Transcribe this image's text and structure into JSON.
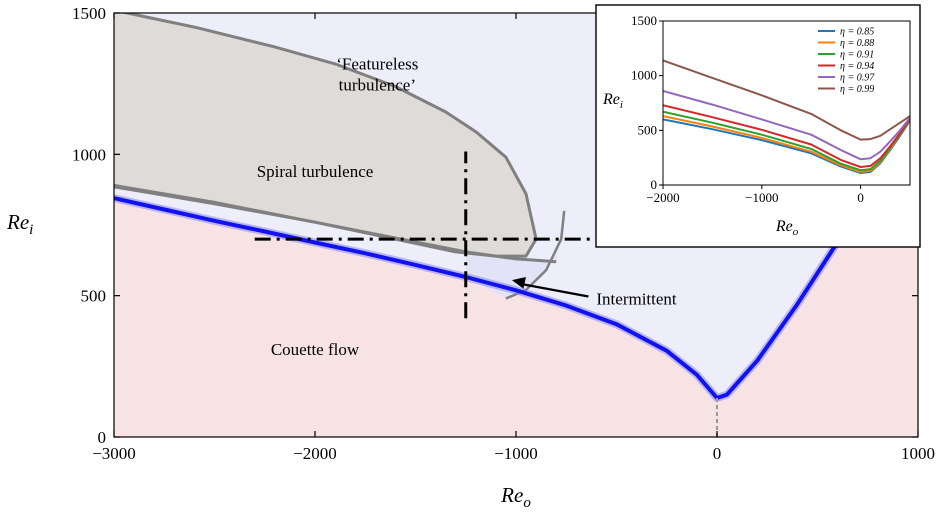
{
  "chart_data": [
    {
      "type": "line",
      "xlabel": "Re",
      "xlabel_sub": "o",
      "ylabel": "Re",
      "ylabel_sub": "i",
      "xlim": [
        -3000,
        1000
      ],
      "ylim": [
        0,
        1500
      ],
      "xticks": [
        -3000,
        -2000,
        -1000,
        0,
        1000
      ],
      "xtick_labels": [
        "−3000",
        "−2000",
        "−1000",
        "0",
        "1000"
      ],
      "yticks": [
        0,
        500,
        1000,
        1500
      ],
      "ytick_labels": [
        "0",
        "500",
        "1000",
        "1500"
      ],
      "regions": [
        {
          "label": "Couette flow",
          "color": "#f7e3e3",
          "label_at": [
            -2000,
            290
          ]
        },
        {
          "label": "Spiral turbulence",
          "color": "#eeeefb",
          "label_at": [
            -2000,
            920
          ]
        },
        {
          "label": "‘Featureless turbulence’",
          "label_lines": [
            "‘Featureless",
            "turbulence’"
          ],
          "color": "#dedbd9",
          "label_at": [
            -1690,
            1300
          ]
        },
        {
          "label": "Intermittent",
          "color": "#e3e3f8",
          "label_at": [
            -600,
            490
          ]
        }
      ],
      "stability_boundary": {
        "color": "#1212ee",
        "x": [
          -3000,
          -2750,
          -2500,
          -2250,
          -2000,
          -1750,
          -1500,
          -1250,
          -1000,
          -750,
          -500,
          -250,
          -100,
          0,
          50,
          200,
          400,
          600,
          800,
          1000
        ],
        "y": [
          845,
          805,
          765,
          727,
          688,
          650,
          609,
          566,
          519,
          465,
          399,
          305,
          220,
          138,
          150,
          270,
          470,
          690,
          920,
          1160
        ]
      },
      "spiral_lower_boundary": {
        "color": "#808080",
        "x": [
          -3000,
          -2500,
          -2000,
          -1500,
          -1250,
          -1100,
          -1000,
          -900,
          -800
        ],
        "y": [
          885,
          825,
          760,
          690,
          655,
          640,
          630,
          625,
          620
        ]
      },
      "featureless_boundary": {
        "color": "#808080",
        "x": [
          -3000,
          -2600,
          -2200,
          -1900,
          -1600,
          -1350,
          -1200,
          -1050,
          -950,
          -900,
          -950,
          -1100,
          -1300,
          -1600,
          -2000,
          -2500,
          -3000
        ],
        "y": [
          1510,
          1450,
          1380,
          1320,
          1240,
          1150,
          1080,
          990,
          860,
          700,
          640,
          640,
          655,
          700,
          760,
          830,
          890
        ]
      },
      "intermittent_boundary": {
        "color": "#808080",
        "x": [
          -1050,
          -950,
          -850,
          -775,
          -760
        ],
        "y": [
          490,
          520,
          590,
          700,
          800
        ]
      },
      "dashdot_lines": [
        {
          "x": [
            -1250,
            -1250
          ],
          "y": [
            420,
            1010
          ]
        },
        {
          "x": [
            -2300,
            -620
          ],
          "y": [
            700,
            700
          ]
        }
      ],
      "vertical_dashed": {
        "x": [
          0,
          0
        ],
        "y": [
          0,
          138
        ]
      },
      "annotations": [
        {
          "text": "Intermittent",
          "arrow_to": [
            -1020,
            555
          ]
        }
      ]
    },
    {
      "type": "line",
      "inset": true,
      "xlabel": "Re",
      "xlabel_sub": "o",
      "ylabel": "Re",
      "ylabel_sub": "i",
      "xlim": [
        -2000,
        500
      ],
      "ylim": [
        0,
        1500
      ],
      "xticks": [
        -2000,
        -1000,
        0
      ],
      "xtick_labels": [
        "−2000",
        "−1000",
        "0"
      ],
      "yticks": [
        0,
        500,
        1000,
        1500
      ],
      "ytick_labels": [
        "0",
        "500",
        "1000",
        "1500"
      ],
      "legend_position": "top-right",
      "series": [
        {
          "name": "η = 0.85",
          "color": "#1f77b4",
          "x": [
            -2000,
            -1500,
            -1000,
            -500,
            -200,
            0,
            100,
            200,
            300,
            400,
            500
          ],
          "y": [
            600,
            510,
            410,
            290,
            170,
            110,
            120,
            200,
            320,
            450,
            590
          ]
        },
        {
          "name": "η = 0.88",
          "color": "#ff7f0e",
          "x": [
            -2000,
            -1500,
            -1000,
            -500,
            -200,
            0,
            100,
            200,
            300,
            400,
            500
          ],
          "y": [
            630,
            535,
            430,
            305,
            180,
            120,
            130,
            210,
            330,
            460,
            595
          ]
        },
        {
          "name": "η = 0.91",
          "color": "#2ca02c",
          "x": [
            -2000,
            -1500,
            -1000,
            -500,
            -200,
            0,
            100,
            200,
            300,
            400,
            500
          ],
          "y": [
            670,
            570,
            460,
            330,
            195,
            135,
            145,
            220,
            340,
            465,
            600
          ]
        },
        {
          "name": "η = 0.94",
          "color": "#d62728",
          "x": [
            -2000,
            -1500,
            -1000,
            -500,
            -200,
            0,
            100,
            200,
            300,
            400,
            500
          ],
          "y": [
            730,
            620,
            505,
            370,
            230,
            165,
            175,
            245,
            355,
            475,
            605
          ]
        },
        {
          "name": "η = 0.97",
          "color": "#9467bd",
          "x": [
            -2000,
            -1500,
            -1000,
            -500,
            -200,
            0,
            100,
            200,
            300,
            400,
            500
          ],
          "y": [
            860,
            735,
            600,
            460,
            320,
            235,
            245,
            305,
            400,
            500,
            615
          ]
        },
        {
          "name": "η = 0.99",
          "color": "#8c564b",
          "x": [
            -2000,
            -1500,
            -1000,
            -500,
            -200,
            0,
            100,
            200,
            300,
            400,
            500
          ],
          "y": [
            1140,
            980,
            820,
            650,
            500,
            415,
            420,
            450,
            510,
            570,
            630
          ]
        }
      ]
    }
  ]
}
